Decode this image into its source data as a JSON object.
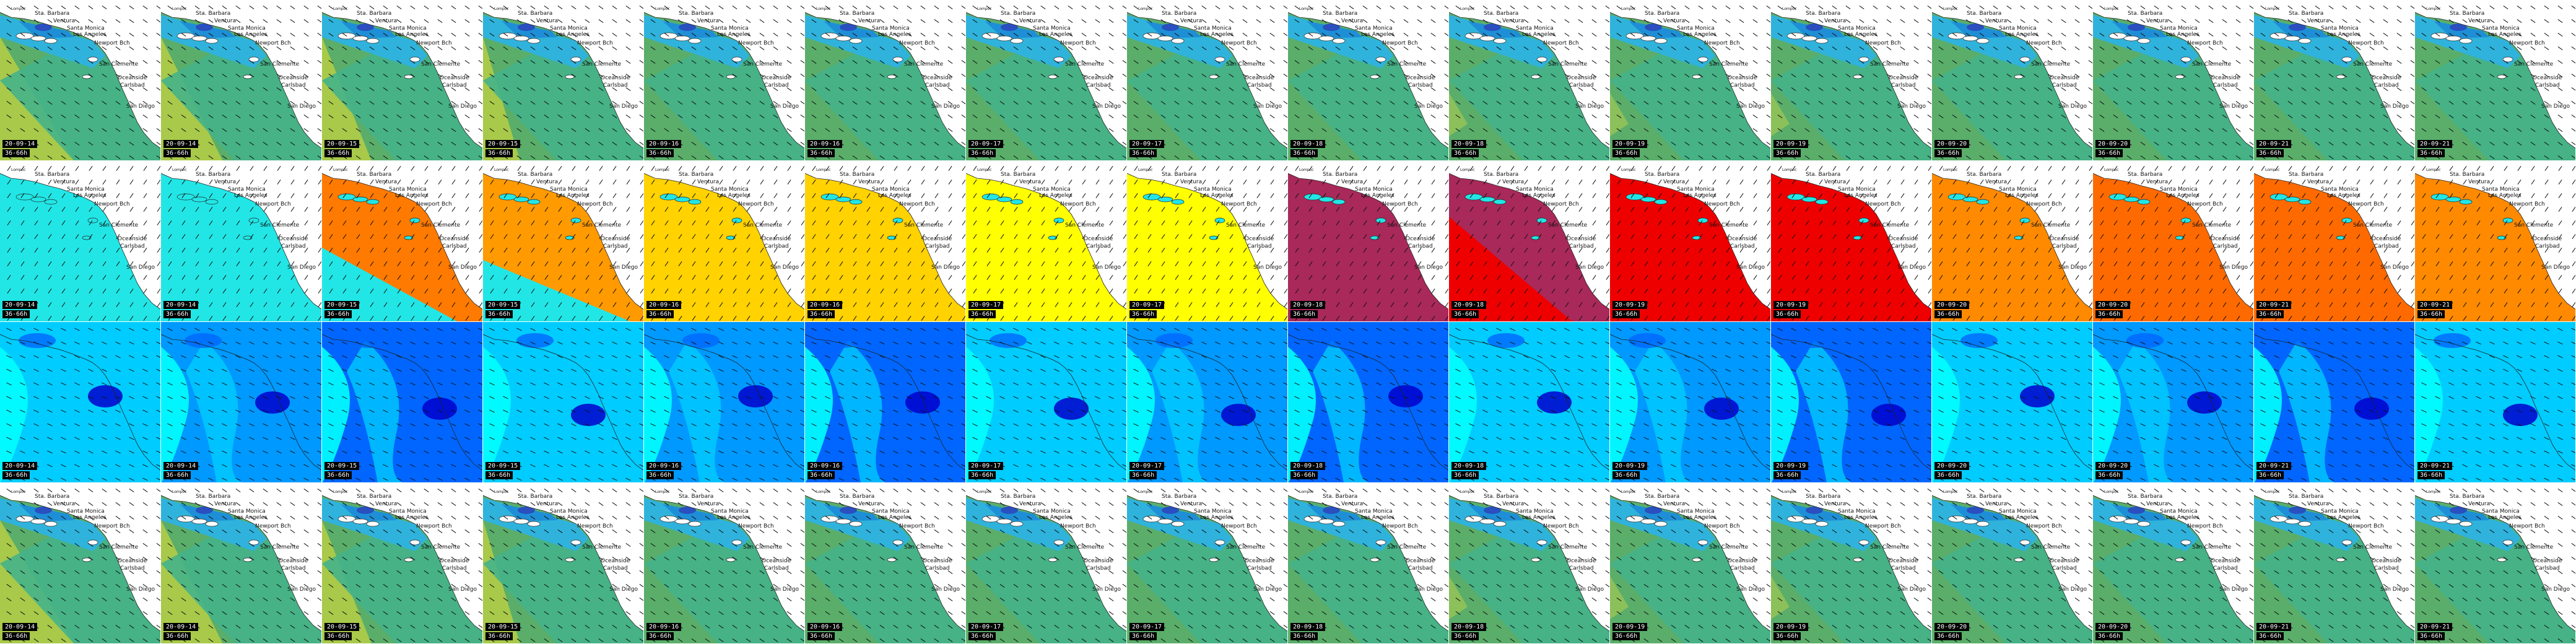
{
  "layout": {
    "rows": 4,
    "cols": 16
  },
  "places": [
    {
      "key": "lompoc",
      "label": "Lompoc"
    },
    {
      "key": "santa_barbara",
      "label": "Sta. Barbara"
    },
    {
      "key": "ventura",
      "label": "Ventura"
    },
    {
      "key": "santa_monica",
      "label": "Santa Monica"
    },
    {
      "key": "los_angeles",
      "label": "Los Angeles"
    },
    {
      "key": "newport",
      "label": "Newport Bch"
    },
    {
      "key": "san_clemente",
      "label": "San Clemente"
    },
    {
      "key": "oceanside",
      "label": "Oceanside"
    },
    {
      "key": "carlsbad",
      "label": "Carlsbad"
    },
    {
      "key": "san_diego",
      "label": "San Diego"
    }
  ],
  "columns": [
    {
      "date": "20-09-14",
      "forecast": "36-66h"
    },
    {
      "date": "20-09-14",
      "forecast": "36-66h"
    },
    {
      "date": "20-09-15",
      "forecast": "36-66h"
    },
    {
      "date": "20-09-15",
      "forecast": "36-66h"
    },
    {
      "date": "20-09-16",
      "forecast": "36-66h"
    },
    {
      "date": "20-09-16",
      "forecast": "36-66h"
    },
    {
      "date": "20-09-17",
      "forecast": "36-66h"
    },
    {
      "date": "20-09-17",
      "forecast": "36-66h"
    },
    {
      "date": "20-09-18",
      "forecast": "36-66h"
    },
    {
      "date": "20-09-18",
      "forecast": "36-66h"
    },
    {
      "date": "20-09-19",
      "forecast": "36-66h"
    },
    {
      "date": "20-09-19",
      "forecast": "36-66h"
    },
    {
      "date": "20-09-20",
      "forecast": "36-66h"
    },
    {
      "date": "20-09-20",
      "forecast": "36-66h"
    },
    {
      "date": "20-09-21",
      "forecast": "36-66h"
    },
    {
      "date": "20-09-21",
      "forecast": "36-66h"
    }
  ],
  "rows": [
    {
      "key": "wave_height",
      "palette_sea": [
        "#a8c94a",
        "#8cc05a",
        "#5aae6a",
        "#44b38a"
      ],
      "palette_coast": [
        "#2fb3dc",
        "#1e8fd6",
        "#2a4fbf"
      ]
    },
    {
      "key": "wave_period",
      "palette_sea": [
        "#22e6e6",
        "#ff7a00",
        "#ff9a00",
        "#ffd200",
        "#ffff00",
        "#a8295a",
        "#ee0000",
        "#ff8a00",
        "#ff6a00"
      ]
    },
    {
      "key": "wind_speed",
      "palette_sea": [
        "#00ffff",
        "#00ccff",
        "#0099ff",
        "#0066ff",
        "#0000cc"
      ]
    },
    {
      "key": "wave_height_2",
      "palette_sea": [
        "#a8c94a",
        "#8cc05a",
        "#5aae6a",
        "#44b38a"
      ],
      "palette_coast": [
        "#2fb3dc",
        "#1e8fd6",
        "#2a4fbf"
      ]
    }
  ],
  "colors": {
    "land": "#ffffff",
    "label_bg": "#000000",
    "label_fg": "#ffffff",
    "coast_line": "#222222",
    "arrow": "#111111"
  }
}
